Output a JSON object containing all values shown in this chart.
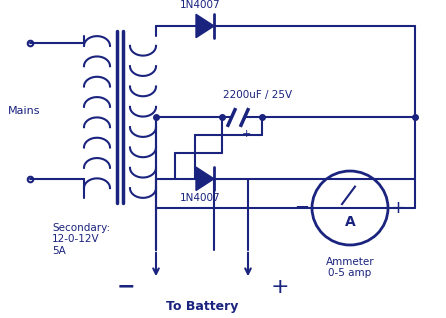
{
  "bg_color": "#ffffff",
  "line_color": "#1a237e",
  "title": "To Battery",
  "secondary_label": "Secondary:\n12-0-12V\n5A",
  "mains_label": "Mains",
  "cap_label": "2200uF / 25V",
  "diode1_label": "1N4007",
  "diode2_label": "1N4007",
  "ammeter_label": "Ammeter\n0-5 amp"
}
